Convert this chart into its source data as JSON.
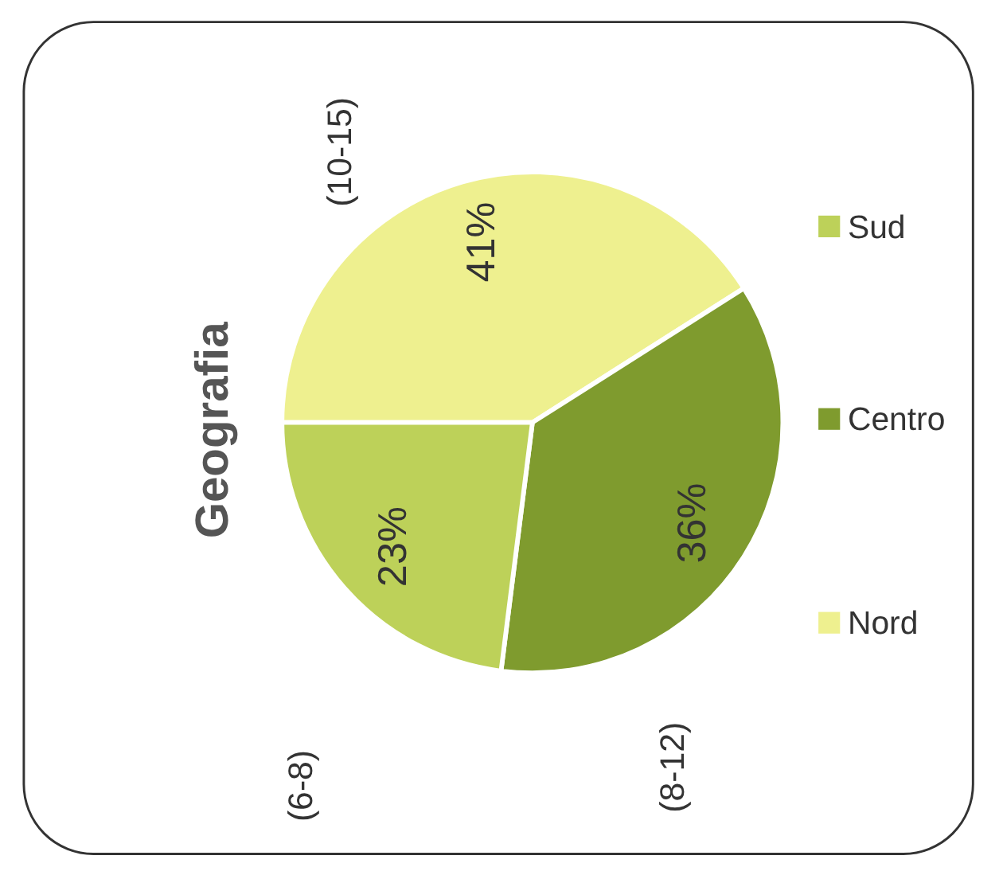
{
  "chart_data": {
    "type": "pie",
    "title": "Geografia",
    "categories": [
      "Nord",
      "Centro",
      "Sud"
    ],
    "values": [
      41,
      36,
      23
    ],
    "colors": [
      "#eef08f",
      "#7f9b2e",
      "#bdd159"
    ],
    "value_labels": [
      "41%",
      "36%",
      "23%"
    ],
    "annotations": [
      "(10-15)",
      "(8-12)",
      "(6-8)"
    ],
    "legend": "right"
  }
}
